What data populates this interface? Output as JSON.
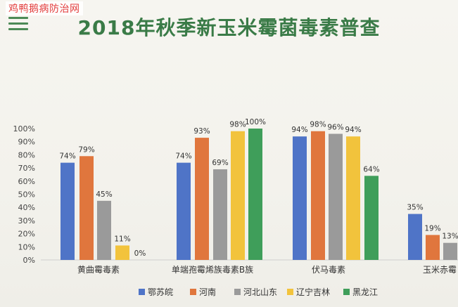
{
  "watermark": "鸡鸭鹅病防治网",
  "icons": {
    "menu": "menu-icon"
  },
  "colors": {
    "title": "#3a7b47",
    "watermark": "#e23b3b"
  },
  "chart_data": {
    "type": "bar",
    "title": "2018年秋季新玉米霉菌毒素普查",
    "xlabel": "",
    "ylabel": "",
    "ylim": [
      0,
      100
    ],
    "y_ticks": [
      "0%",
      "10%",
      "20%",
      "30%",
      "40%",
      "50%",
      "60%",
      "70%",
      "80%",
      "90%",
      "100%"
    ],
    "grid": false,
    "legend_position": "bottom",
    "categories": [
      "黄曲霉毒素",
      "单端孢霉烯族毒素B族",
      "伏马毒素",
      "玉米赤霉"
    ],
    "series": [
      {
        "name": "鄂苏皖",
        "color": "#4f74c7",
        "values": [
          74,
          74,
          94,
          35
        ]
      },
      {
        "name": "河南",
        "color": "#e0763d",
        "values": [
          79,
          93,
          98,
          19
        ]
      },
      {
        "name": "河北山东",
        "color": "#9a9a9a",
        "values": [
          45,
          69,
          96,
          13
        ]
      },
      {
        "name": "辽宁吉林",
        "color": "#f2c33c",
        "values": [
          11,
          98,
          94,
          null
        ]
      },
      {
        "name": "黑龙江",
        "color": "#3f9e5a",
        "values": [
          0,
          100,
          64,
          null
        ]
      }
    ],
    "data_labels": [
      [
        "74%",
        "79%",
        "45%",
        "11%",
        "0%"
      ],
      [
        "74%",
        "93%",
        "69%",
        "98%",
        "100%"
      ],
      [
        "94%",
        "98%",
        "96%",
        "94%",
        "64%"
      ],
      [
        "35%",
        "19%",
        "13%",
        "",
        ""
      ]
    ]
  }
}
